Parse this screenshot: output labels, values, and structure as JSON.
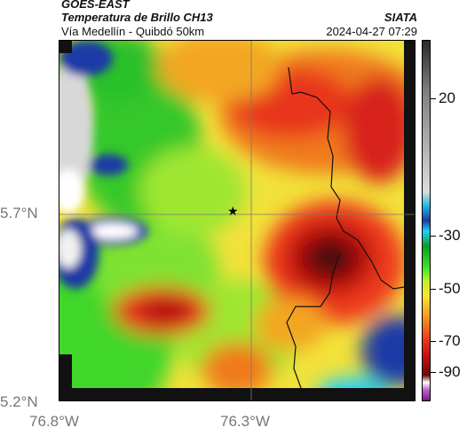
{
  "header": {
    "satellite": "GOES-EAST",
    "product": "Temperatura de Brillo CH13",
    "region": "Vía Medellín - Quibdó 50km",
    "org": "SIATA",
    "datetime": "2024-04-27 07:29"
  },
  "map": {
    "lat_labels": [
      "5.7°N",
      "5.2°N"
    ],
    "lon_labels": [
      "76.8°W",
      "76.3°W"
    ],
    "marker": "star-icon"
  },
  "colorbar": {
    "labels": [
      "20",
      "-30",
      "-50",
      "-70",
      "-90"
    ],
    "colors": [
      "#2a2a2a",
      "#7f7f7f",
      "#dcdcdc",
      "#19b8e6",
      "#1f3aa6",
      "#1fd1ff",
      "#0c9b2b",
      "#3de32a",
      "#c8ef30",
      "#f6e436",
      "#f7a321",
      "#ee3a1a",
      "#c01010",
      "#6e0a0a",
      "#ffffff",
      "#c066c8",
      "#7a1a86"
    ]
  }
}
